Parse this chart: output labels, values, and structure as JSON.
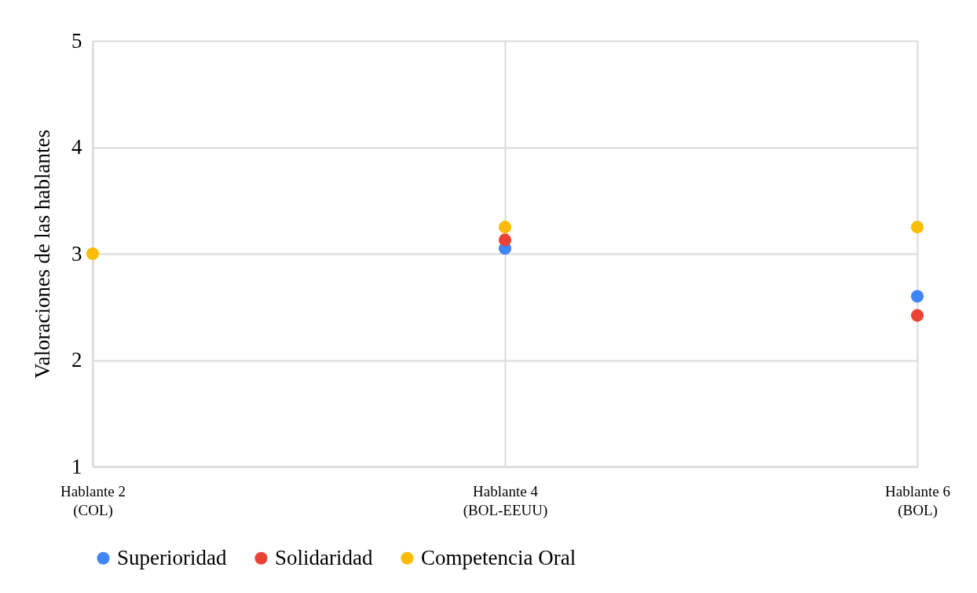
{
  "chart_data": {
    "type": "scatter",
    "ylabel": "Valoraciones de las hablantes",
    "categories": [
      "Hablante 2\n(COL)",
      "Hablante 4\n(BOL-EEUU)",
      "Hablante 6\n(BOL)"
    ],
    "series": [
      {
        "name": "Superioridad",
        "color": "#4285f4",
        "values": [
          null,
          3.05,
          2.6
        ]
      },
      {
        "name": "Solidaridad",
        "color": "#ea4335",
        "values": [
          null,
          3.13,
          2.42
        ]
      },
      {
        "name": "Competencia Oral",
        "color": "#fbbc04",
        "values": [
          3.0,
          3.25,
          3.25
        ]
      }
    ],
    "ylim": [
      1,
      5
    ],
    "yticks": [
      1,
      2,
      3,
      4,
      5
    ],
    "grid": true,
    "legend": "bottom",
    "marker": "circle"
  }
}
